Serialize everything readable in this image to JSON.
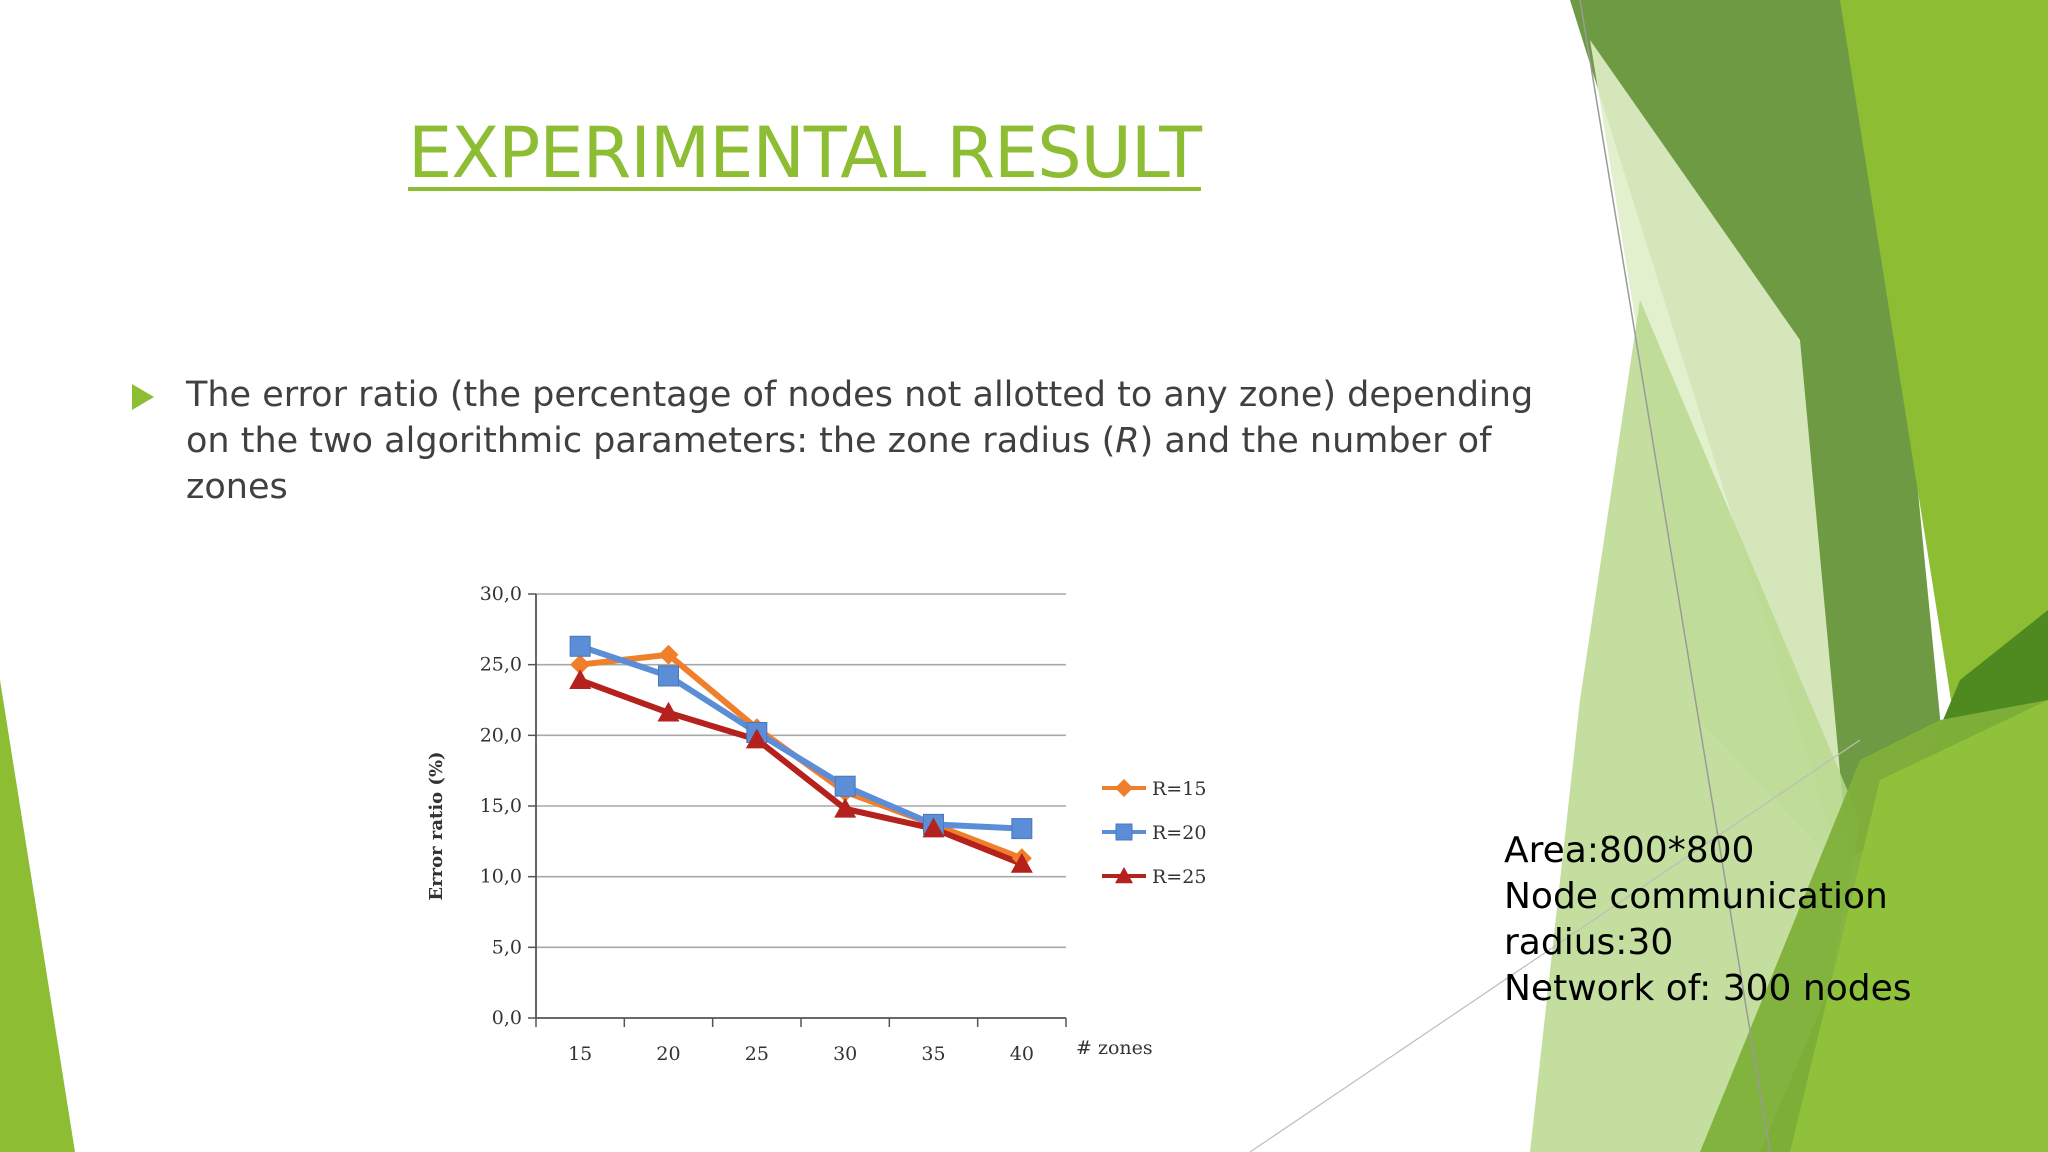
{
  "slide": {
    "title": "EXPERIMENTAL RESULT",
    "bullet": {
      "before": "The error ratio (the percentage of nodes not allotted to any zone) depending on the two algorithmic parameters: the zone radius (",
      "emphasis": "R",
      "after": ") and the number of zones"
    },
    "info_lines": [
      "Area:800*800",
      "Node communication",
      "radius:30",
      "Network of: 300 nodes"
    ],
    "accent_color": "#8cbd33",
    "bullet_icon": "triangle-right-icon"
  },
  "chart_data": {
    "type": "line",
    "x": [
      15,
      20,
      25,
      30,
      35,
      40
    ],
    "x_tick_labels": [
      "15",
      "20",
      "25",
      "30",
      "35",
      "40"
    ],
    "xlabel": "# zones",
    "ylabel": "Error ratio (%)",
    "ylim": [
      0,
      30
    ],
    "y_ticks": [
      0,
      5,
      10,
      15,
      20,
      25,
      30
    ],
    "y_tick_labels": [
      "0,0",
      "5,0",
      "10,0",
      "15,0",
      "20,0",
      "25,0",
      "30,0"
    ],
    "grid": true,
    "legend_position": "right",
    "series": [
      {
        "name": "R=15",
        "values": [
          25.0,
          25.7,
          20.5,
          16.0,
          13.7,
          11.3
        ],
        "color": "#f07f2b",
        "marker": "diamond"
      },
      {
        "name": "R=20",
        "values": [
          26.3,
          24.2,
          20.2,
          16.4,
          13.7,
          13.4
        ],
        "color": "#5b8ed6",
        "marker": "square"
      },
      {
        "name": "R=25",
        "values": [
          23.9,
          21.6,
          19.7,
          14.8,
          13.4,
          10.9
        ],
        "color": "#b5211c",
        "marker": "triangle"
      }
    ]
  }
}
